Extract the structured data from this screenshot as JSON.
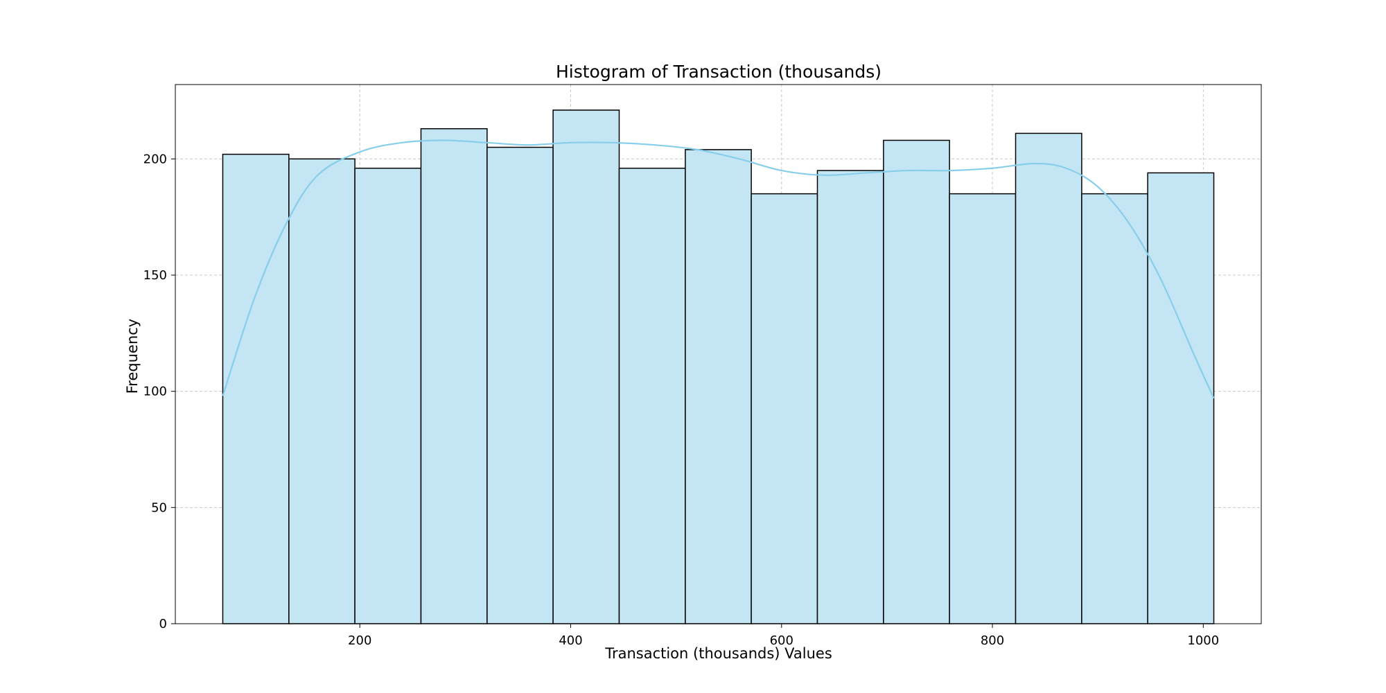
{
  "chart_data": {
    "type": "bar",
    "subtype": "histogram",
    "title": "Histogram of Transaction (thousands)",
    "xlabel": "Transaction (thousands) Values",
    "ylabel": "Frequency",
    "bins": {
      "start": 70,
      "end": 1010,
      "edges": [
        70,
        132.7,
        195.3,
        258,
        320.7,
        383.3,
        446,
        508.7,
        571.3,
        634,
        696.7,
        759.3,
        822,
        884.7,
        947.3,
        1010
      ],
      "counts": [
        202,
        200,
        196,
        213,
        205,
        221,
        196,
        204,
        185,
        195,
        208,
        185,
        211,
        185,
        194
      ]
    },
    "kde": {
      "name": "kde",
      "x": [
        70,
        100,
        130,
        160,
        200,
        240,
        280,
        320,
        360,
        400,
        440,
        480,
        520,
        560,
        600,
        640,
        680,
        720,
        760,
        800,
        840,
        870,
        900,
        930,
        960,
        990,
        1010
      ],
      "y": [
        98,
        140,
        172,
        193,
        203,
        207,
        208,
        207,
        206,
        207,
        207,
        206,
        204,
        200,
        195,
        193,
        194,
        195,
        195,
        196,
        198,
        196,
        188,
        172,
        148,
        117,
        97
      ]
    },
    "xlim": [
      25,
      1055
    ],
    "ylim": [
      0,
      232
    ],
    "xticks": [
      200,
      400,
      600,
      800,
      1000
    ],
    "yticks": [
      0,
      50,
      100,
      150,
      200
    ],
    "grid": true,
    "colors": {
      "bar_fill": "#c4e5f3",
      "bar_edge": "#000000",
      "kde_line": "#87ceeb",
      "grid": "#c8c8c8"
    }
  }
}
